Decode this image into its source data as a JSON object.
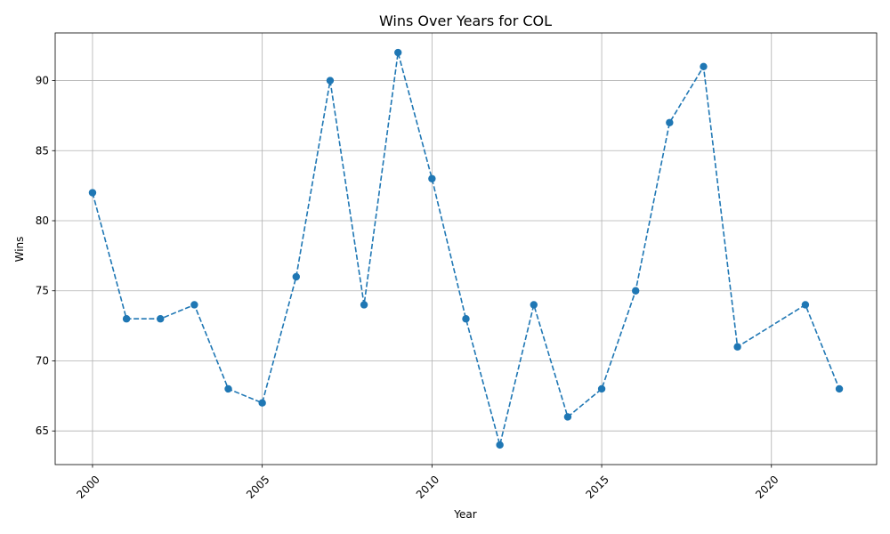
{
  "chart_data": {
    "type": "line",
    "title": "Wins Over Years for COL",
    "xlabel": "Year",
    "ylabel": "Wins",
    "x": [
      2000,
      2001,
      2002,
      2003,
      2004,
      2005,
      2006,
      2007,
      2008,
      2009,
      2010,
      2011,
      2012,
      2013,
      2014,
      2015,
      2016,
      2017,
      2018,
      2019,
      2021,
      2022
    ],
    "series": [
      {
        "values": [
          82,
          73,
          73,
          74,
          68,
          67,
          76,
          90,
          74,
          92,
          83,
          73,
          64,
          74,
          66,
          68,
          75,
          87,
          91,
          71,
          74,
          68
        ],
        "color": "#1f77b4",
        "line_style": "dashed",
        "marker": "circle"
      }
    ],
    "xlim": [
      1998.9,
      2023.1
    ],
    "ylim": [
      62.6,
      93.4
    ],
    "xticks": [
      2000,
      2005,
      2010,
      2015,
      2020
    ],
    "yticks": [
      65,
      70,
      75,
      80,
      85,
      90
    ],
    "xtick_rotation": 45,
    "grid": true
  }
}
